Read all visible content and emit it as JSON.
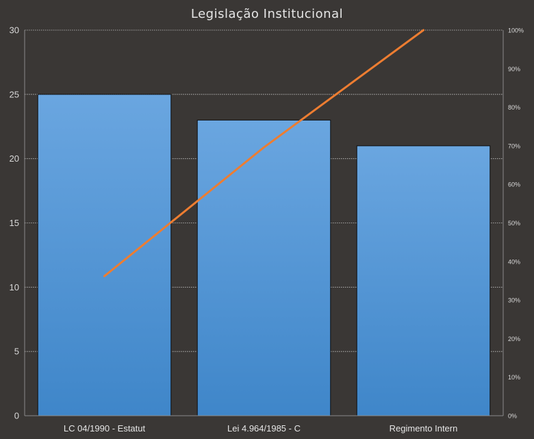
{
  "chart_data": {
    "type": "bar",
    "title": "Legislação Institucional",
    "categories": [
      "LC 04/1990 - Estatut",
      "Lei 4.964/1985 - C",
      "Regimento Intern"
    ],
    "series": [
      {
        "values": [
          25,
          23,
          21
        ],
        "color": "#5b9bd5"
      },
      {
        "type": "line",
        "axis": "right",
        "values": [
          36.2,
          69.6,
          100
        ],
        "color": "#ed7d31"
      }
    ],
    "ylim": [
      0,
      30
    ],
    "yticks": [
      "0",
      "5",
      "10",
      "15",
      "20",
      "25",
      "30"
    ],
    "y2lim": [
      0,
      100
    ],
    "y2ticks": [
      "0%",
      "10%",
      "20%",
      "30%",
      "40%",
      "50%",
      "60%",
      "70%",
      "80%",
      "90%",
      "100%"
    ],
    "grid": true,
    "legend": "none"
  }
}
